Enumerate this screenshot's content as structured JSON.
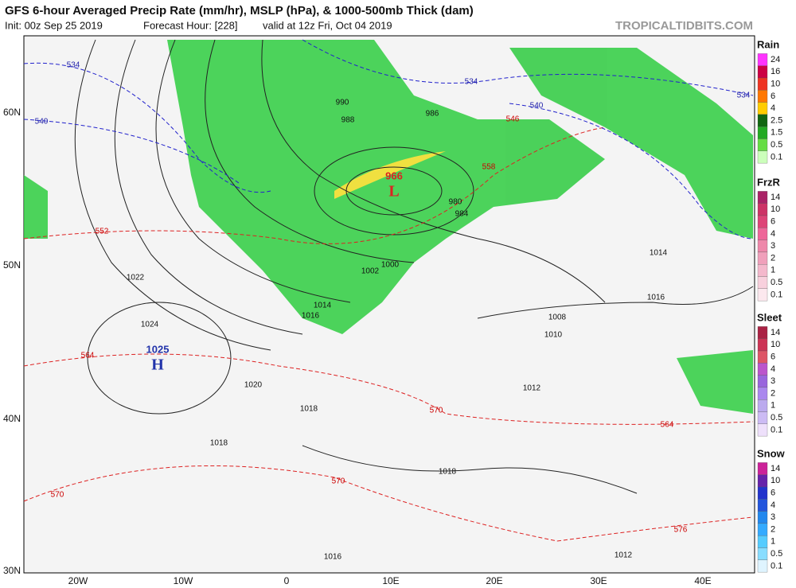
{
  "header": {
    "title": "GFS 6-hour Averaged Precip Rate (mm/hr), MSLP (hPa), & 1000-500mb Thick (dam)",
    "init": "Init: 00z Sep 25 2019",
    "forecast_hour": "Forecast Hour: [228]",
    "valid": "valid at 12z Fri, Oct 04 2019",
    "site": "TROPICALTIDBITS.COM"
  },
  "map": {
    "lat_labels": [
      "60N",
      "50N",
      "40N",
      "30N"
    ],
    "lon_labels": [
      "20W",
      "10W",
      "0",
      "10E",
      "20E",
      "30E",
      "40E"
    ],
    "centers": [
      {
        "value": "1025",
        "symbol": "H"
      },
      {
        "value": "966",
        "symbol": "L"
      }
    ],
    "isobar_labels": [
      "1022",
      "1024",
      "1020",
      "1018",
      "1018",
      "1014",
      "1016",
      "1000",
      "1002",
      "980",
      "984",
      "986",
      "988",
      "990",
      "1008",
      "1010",
      "1012",
      "1014",
      "1016",
      "1018",
      "1016",
      "1012"
    ],
    "thickness_labels": [
      "552",
      "564",
      "570",
      "558",
      "546",
      "570",
      "570",
      "576",
      "564"
    ],
    "cold_thickness_labels": [
      "534",
      "540",
      "534",
      "540",
      "534"
    ]
  },
  "legend": [
    {
      "title": "Rain",
      "ticks": [
        "24",
        "16",
        "10",
        "6",
        "4",
        "2.5",
        "1.5",
        "0.5",
        "0.1"
      ]
    },
    {
      "title": "FrzR",
      "ticks": [
        "14",
        "10",
        "6",
        "4",
        "3",
        "2",
        "1",
        "0.5",
        "0.1"
      ]
    },
    {
      "title": "Sleet",
      "ticks": [
        "14",
        "10",
        "6",
        "4",
        "3",
        "2",
        "1",
        "0.5",
        "0.1"
      ]
    },
    {
      "title": "Snow",
      "ticks": [
        "14",
        "10",
        "6",
        "4",
        "3",
        "2",
        "1",
        "0.5",
        "0.1"
      ]
    }
  ]
}
